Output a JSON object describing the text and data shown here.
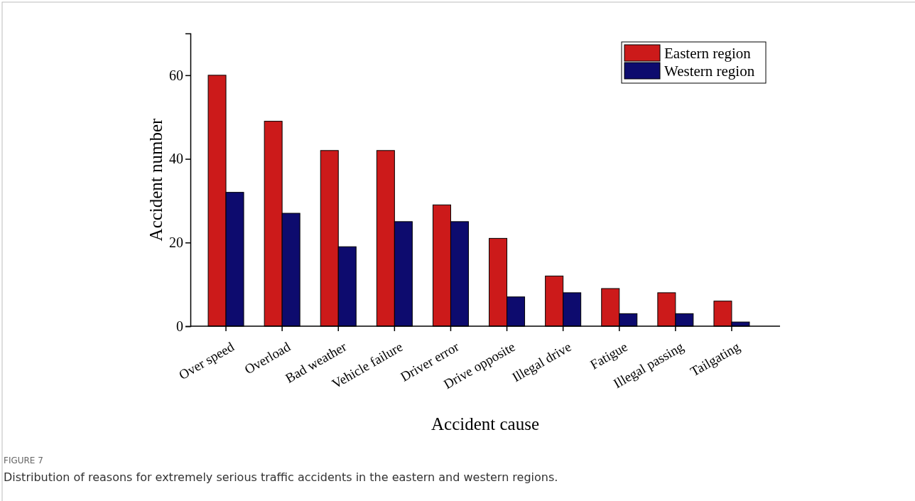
{
  "chart_data": {
    "type": "bar",
    "xlabel": "Accident cause",
    "ylabel": "Accident number",
    "categories": [
      "Over speed",
      "Overload",
      "Bad weather",
      "Vehicle failure",
      "Driver error",
      "Drive opposite",
      "Illegal drive",
      "Fatigue",
      "Illegal passing",
      "Tailgating"
    ],
    "series": [
      {
        "name": "Eastern region",
        "color": "#cc1a1a",
        "values": [
          60,
          49,
          42,
          42,
          29,
          21,
          12,
          9,
          8,
          6
        ]
      },
      {
        "name": "Western region",
        "color": "#0d0b6e",
        "values": [
          32,
          27,
          19,
          25,
          25,
          7,
          8,
          3,
          3,
          1
        ]
      }
    ],
    "ylim": [
      0,
      70
    ],
    "yticks": [
      0,
      20,
      40,
      60
    ],
    "grid": false,
    "legend": "top right",
    "annotations": [
      "FIGURE 7",
      "Distribution of reasons for extremely serious traffic accidents in the eastern and western regions."
    ]
  }
}
